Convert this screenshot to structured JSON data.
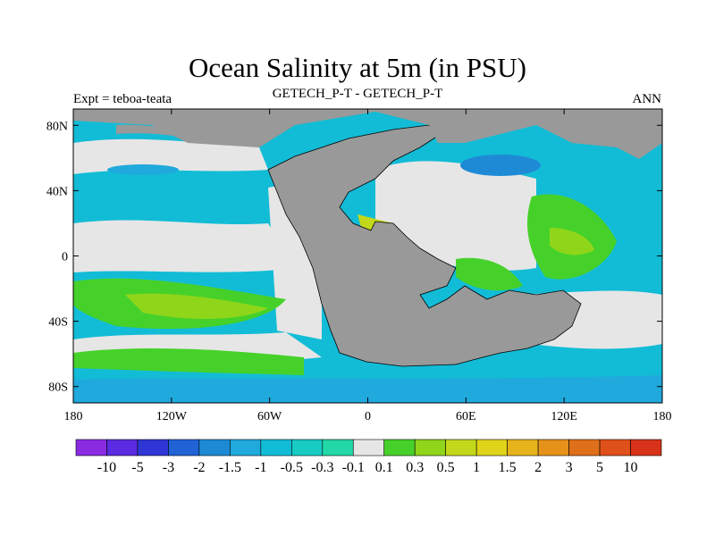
{
  "title": "Ocean Salinity at 5m (in PSU)",
  "subtitle_left": "Expt = teboa-teata",
  "subtitle_center": "GETECH_P-T - GETECH_P-T",
  "subtitle_right": "ANN",
  "lat_ticks": [
    {
      "value": 80,
      "label": "80N"
    },
    {
      "value": 40,
      "label": "40N"
    },
    {
      "value": 0,
      "label": "0"
    },
    {
      "value": -40,
      "label": "40S"
    },
    {
      "value": -80,
      "label": "80S"
    }
  ],
  "lon_ticks": [
    {
      "value": -180,
      "label": "180"
    },
    {
      "value": -120,
      "label": "120W"
    },
    {
      "value": -60,
      "label": "60W"
    },
    {
      "value": 0,
      "label": "0"
    },
    {
      "value": 60,
      "label": "60E"
    },
    {
      "value": 120,
      "label": "120E"
    },
    {
      "value": 180,
      "label": "180"
    }
  ],
  "colorbar": {
    "colors": [
      "#8a2be2",
      "#5a2be0",
      "#2f36d6",
      "#1f63d6",
      "#1e8ad6",
      "#20a9dc",
      "#12bcd6",
      "#18ccc4",
      "#22d8a6",
      "#e6e6e6",
      "#46d12a",
      "#8fd61a",
      "#c3d81a",
      "#e0d31a",
      "#e6b41a",
      "#e6921a",
      "#e06f1a",
      "#e0501a",
      "#d8321a"
    ],
    "labels": [
      "-10",
      "-5",
      "-3",
      "-2",
      "-1.5",
      "-1",
      "-0.5",
      "-0.3",
      "-0.1",
      "0.1",
      "0.3",
      "0.5",
      "1",
      "1.5",
      "2",
      "3",
      "5",
      "10"
    ]
  }
}
